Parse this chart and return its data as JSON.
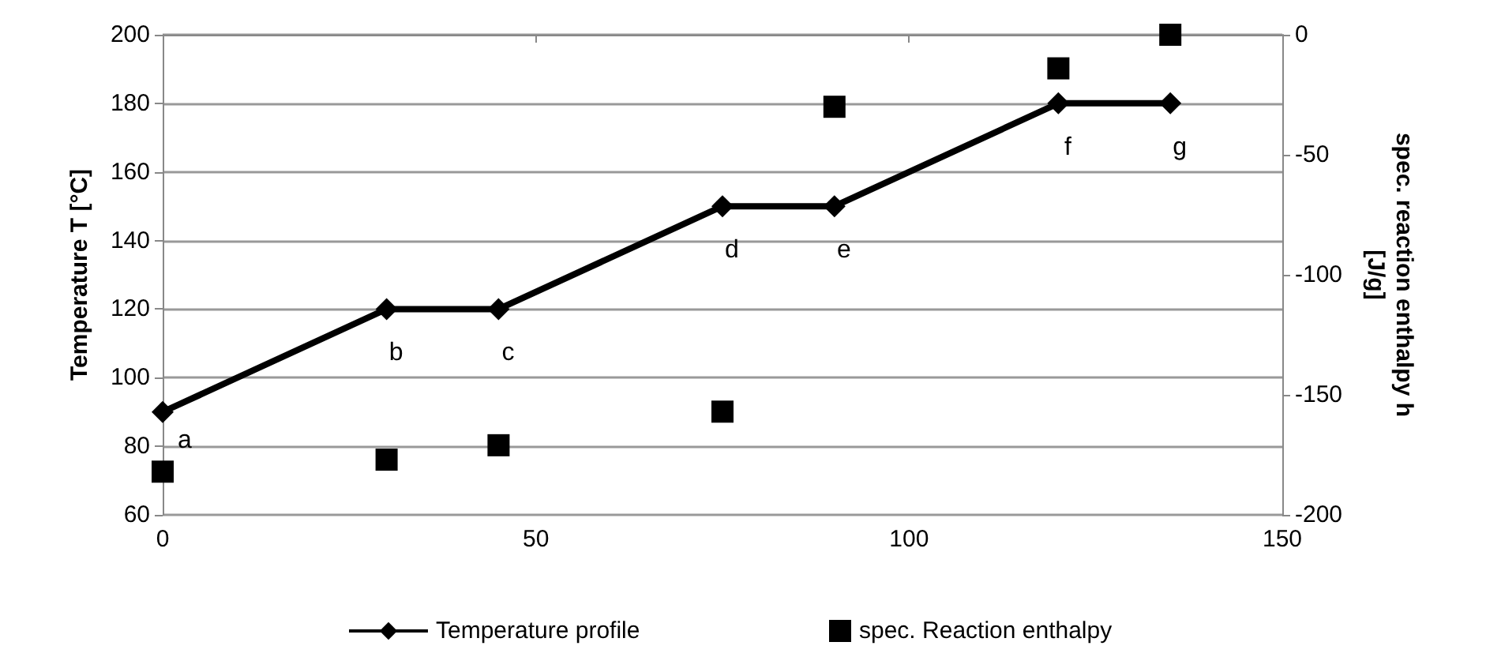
{
  "chart_data": {
    "type": "line",
    "ylabel": "Temperature T [°C]",
    "y2label": "spec. reaction enthalpy h [J/g]",
    "x": [
      0,
      30,
      45,
      75,
      90,
      120,
      135
    ],
    "series": [
      {
        "name": "Temperature profile",
        "color": "#000000",
        "marker": "diamond",
        "values": [
          90,
          120,
          120,
          150,
          150,
          180,
          180
        ]
      },
      {
        "name": "spec. Reaction enthalpy",
        "type": "scatter",
        "axis": "y2",
        "color": "#000000",
        "marker": "square",
        "values": [
          -182,
          -177,
          -171,
          -157,
          -30,
          -14,
          0
        ]
      }
    ],
    "annotations": [
      {
        "text": "a",
        "x": 0,
        "y": 90
      },
      {
        "text": "b",
        "x": 30,
        "y": 120
      },
      {
        "text": "c",
        "x": 45,
        "y": 120
      },
      {
        "text": "d",
        "x": 75,
        "y": 150
      },
      {
        "text": "e",
        "x": 90,
        "y": 150
      },
      {
        "text": "f",
        "x": 120,
        "y": 180
      },
      {
        "text": "g",
        "x": 135,
        "y": 180
      }
    ],
    "xlim": [
      0,
      150
    ],
    "xticks": [
      0,
      50,
      100,
      150
    ],
    "ylim": [
      60,
      200
    ],
    "yticks": [
      60,
      80,
      100,
      120,
      140,
      160,
      180,
      200
    ],
    "y2lim": [
      -200,
      0
    ],
    "y2ticks": [
      -200,
      -150,
      -100,
      -50,
      0
    ],
    "grid": "y",
    "legend": "bottom"
  }
}
